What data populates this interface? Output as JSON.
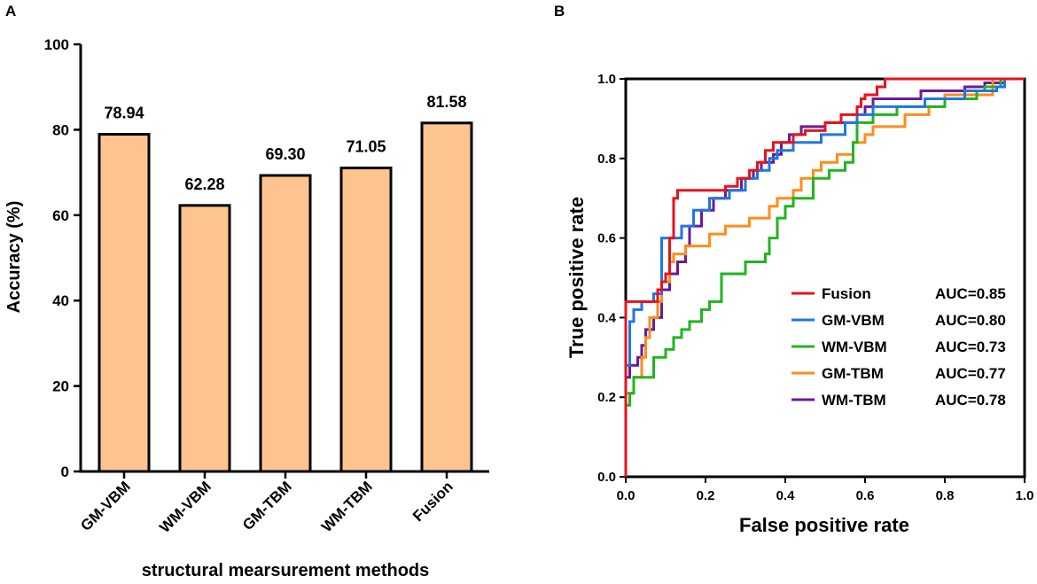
{
  "chart_data": [
    {
      "panel_label": "A",
      "type": "bar",
      "categories": [
        "GM-VBM",
        "WM-VBM",
        "GM-TBM",
        "WM-TBM",
        "Fusion"
      ],
      "values": [
        78.94,
        62.28,
        69.3,
        71.05,
        81.58
      ],
      "value_labels": [
        "78.94",
        "62.28",
        "69.30",
        "71.05",
        "81.58"
      ],
      "title": "",
      "xlabel": "structural mearsurement methods",
      "ylabel": "Accuracy (%)",
      "ylim": [
        0,
        100
      ],
      "yticks": [
        0,
        20,
        40,
        60,
        80,
        100
      ],
      "bar_color": "#FDC48F",
      "bar_edge_color": "#000000"
    },
    {
      "panel_label": "B",
      "type": "line",
      "title": "",
      "xlabel": "False positive rate",
      "ylabel": "True positive rate",
      "xlim": [
        0,
        1
      ],
      "ylim": [
        0,
        1
      ],
      "xticks": [
        "0.0",
        "0.2",
        "0.4",
        "0.6",
        "0.8",
        "1.0"
      ],
      "yticks": [
        "0.0",
        "0.2",
        "0.4",
        "0.6",
        "0.8",
        "1.0"
      ],
      "legend_position": "lower-right",
      "series": [
        {
          "name": "Fusion",
          "auc_label": "AUC=0.85",
          "color": "#E8131B",
          "points": [
            [
              0,
              0
            ],
            [
              0,
              0.44
            ],
            [
              0.08,
              0.44
            ],
            [
              0.08,
              0.47
            ],
            [
              0.09,
              0.47
            ],
            [
              0.09,
              0.49
            ],
            [
              0.1,
              0.49
            ],
            [
              0.1,
              0.51
            ],
            [
              0.11,
              0.51
            ],
            [
              0.11,
              0.6
            ],
            [
              0.12,
              0.6
            ],
            [
              0.12,
              0.7
            ],
            [
              0.13,
              0.7
            ],
            [
              0.13,
              0.72
            ],
            [
              0.25,
              0.72
            ],
            [
              0.25,
              0.73
            ],
            [
              0.28,
              0.73
            ],
            [
              0.28,
              0.75
            ],
            [
              0.31,
              0.75
            ],
            [
              0.31,
              0.77
            ],
            [
              0.33,
              0.77
            ],
            [
              0.33,
              0.79
            ],
            [
              0.35,
              0.79
            ],
            [
              0.35,
              0.82
            ],
            [
              0.37,
              0.82
            ],
            [
              0.37,
              0.84
            ],
            [
              0.42,
              0.84
            ],
            [
              0.42,
              0.86
            ],
            [
              0.45,
              0.86
            ],
            [
              0.45,
              0.87
            ],
            [
              0.5,
              0.87
            ],
            [
              0.5,
              0.89
            ],
            [
              0.54,
              0.89
            ],
            [
              0.54,
              0.91
            ],
            [
              0.58,
              0.91
            ],
            [
              0.58,
              0.93
            ],
            [
              0.59,
              0.93
            ],
            [
              0.59,
              0.95
            ],
            [
              0.6,
              0.95
            ],
            [
              0.6,
              0.96
            ],
            [
              0.63,
              0.96
            ],
            [
              0.63,
              0.98
            ],
            [
              0.65,
              0.98
            ],
            [
              0.65,
              1.0
            ],
            [
              1.0,
              1.0
            ]
          ]
        },
        {
          "name": "GM-VBM",
          "auc_label": "AUC=0.80",
          "color": "#1F77E6",
          "points": [
            [
              0,
              0
            ],
            [
              0,
              0.28
            ],
            [
              0.01,
              0.28
            ],
            [
              0.01,
              0.39
            ],
            [
              0.02,
              0.39
            ],
            [
              0.02,
              0.42
            ],
            [
              0.04,
              0.42
            ],
            [
              0.04,
              0.44
            ],
            [
              0.07,
              0.44
            ],
            [
              0.07,
              0.46
            ],
            [
              0.09,
              0.46
            ],
            [
              0.09,
              0.6
            ],
            [
              0.14,
              0.6
            ],
            [
              0.14,
              0.63
            ],
            [
              0.17,
              0.63
            ],
            [
              0.17,
              0.67
            ],
            [
              0.21,
              0.67
            ],
            [
              0.21,
              0.7
            ],
            [
              0.26,
              0.7
            ],
            [
              0.26,
              0.72
            ],
            [
              0.3,
              0.72
            ],
            [
              0.3,
              0.75
            ],
            [
              0.33,
              0.75
            ],
            [
              0.33,
              0.77
            ],
            [
              0.36,
              0.77
            ],
            [
              0.36,
              0.8
            ],
            [
              0.38,
              0.8
            ],
            [
              0.38,
              0.82
            ],
            [
              0.42,
              0.82
            ],
            [
              0.42,
              0.84
            ],
            [
              0.49,
              0.84
            ],
            [
              0.49,
              0.86
            ],
            [
              0.55,
              0.86
            ],
            [
              0.55,
              0.89
            ],
            [
              0.58,
              0.89
            ],
            [
              0.58,
              0.91
            ],
            [
              0.62,
              0.91
            ],
            [
              0.62,
              0.93
            ],
            [
              0.75,
              0.93
            ],
            [
              0.75,
              0.95
            ],
            [
              0.85,
              0.95
            ],
            [
              0.85,
              0.97
            ],
            [
              0.93,
              0.97
            ],
            [
              0.93,
              0.98
            ],
            [
              0.95,
              0.98
            ],
            [
              0.95,
              1.0
            ],
            [
              1.0,
              1.0
            ]
          ]
        },
        {
          "name": "WM-VBM",
          "auc_label": "AUC=0.73",
          "color": "#21B421",
          "points": [
            [
              0,
              0
            ],
            [
              0,
              0.18
            ],
            [
              0.01,
              0.18
            ],
            [
              0.01,
              0.21
            ],
            [
              0.02,
              0.21
            ],
            [
              0.02,
              0.25
            ],
            [
              0.07,
              0.25
            ],
            [
              0.07,
              0.3
            ],
            [
              0.1,
              0.3
            ],
            [
              0.1,
              0.32
            ],
            [
              0.12,
              0.32
            ],
            [
              0.12,
              0.35
            ],
            [
              0.14,
              0.35
            ],
            [
              0.14,
              0.37
            ],
            [
              0.16,
              0.37
            ],
            [
              0.16,
              0.39
            ],
            [
              0.19,
              0.39
            ],
            [
              0.19,
              0.42
            ],
            [
              0.21,
              0.42
            ],
            [
              0.21,
              0.44
            ],
            [
              0.24,
              0.44
            ],
            [
              0.24,
              0.51
            ],
            [
              0.3,
              0.51
            ],
            [
              0.3,
              0.54
            ],
            [
              0.35,
              0.54
            ],
            [
              0.35,
              0.56
            ],
            [
              0.36,
              0.56
            ],
            [
              0.36,
              0.6
            ],
            [
              0.38,
              0.6
            ],
            [
              0.38,
              0.65
            ],
            [
              0.4,
              0.65
            ],
            [
              0.4,
              0.68
            ],
            [
              0.42,
              0.68
            ],
            [
              0.42,
              0.7
            ],
            [
              0.47,
              0.7
            ],
            [
              0.47,
              0.75
            ],
            [
              0.51,
              0.75
            ],
            [
              0.51,
              0.77
            ],
            [
              0.55,
              0.77
            ],
            [
              0.55,
              0.79
            ],
            [
              0.57,
              0.79
            ],
            [
              0.57,
              0.84
            ],
            [
              0.58,
              0.84
            ],
            [
              0.58,
              0.89
            ],
            [
              0.62,
              0.89
            ],
            [
              0.62,
              0.91
            ],
            [
              0.68,
              0.91
            ],
            [
              0.68,
              0.93
            ],
            [
              0.8,
              0.93
            ],
            [
              0.8,
              0.95
            ],
            [
              0.88,
              0.95
            ],
            [
              0.88,
              0.97
            ],
            [
              0.9,
              0.97
            ],
            [
              0.9,
              0.98
            ],
            [
              0.94,
              0.98
            ],
            [
              0.94,
              1.0
            ],
            [
              1.0,
              1.0
            ]
          ]
        },
        {
          "name": "GM-TBM",
          "auc_label": "AUC=0.77",
          "color": "#FF8C1A",
          "points": [
            [
              0,
              0
            ],
            [
              0,
              0.21
            ],
            [
              0.02,
              0.21
            ],
            [
              0.02,
              0.25
            ],
            [
              0.04,
              0.25
            ],
            [
              0.04,
              0.3
            ],
            [
              0.05,
              0.3
            ],
            [
              0.05,
              0.35
            ],
            [
              0.06,
              0.35
            ],
            [
              0.06,
              0.4
            ],
            [
              0.08,
              0.4
            ],
            [
              0.08,
              0.44
            ],
            [
              0.09,
              0.44
            ],
            [
              0.09,
              0.49
            ],
            [
              0.11,
              0.49
            ],
            [
              0.11,
              0.54
            ],
            [
              0.12,
              0.54
            ],
            [
              0.12,
              0.56
            ],
            [
              0.15,
              0.56
            ],
            [
              0.15,
              0.58
            ],
            [
              0.21,
              0.58
            ],
            [
              0.21,
              0.61
            ],
            [
              0.25,
              0.61
            ],
            [
              0.25,
              0.63
            ],
            [
              0.31,
              0.63
            ],
            [
              0.31,
              0.65
            ],
            [
              0.36,
              0.65
            ],
            [
              0.36,
              0.68
            ],
            [
              0.38,
              0.68
            ],
            [
              0.38,
              0.7
            ],
            [
              0.42,
              0.7
            ],
            [
              0.42,
              0.72
            ],
            [
              0.44,
              0.72
            ],
            [
              0.44,
              0.75
            ],
            [
              0.47,
              0.75
            ],
            [
              0.47,
              0.77
            ],
            [
              0.49,
              0.77
            ],
            [
              0.49,
              0.79
            ],
            [
              0.53,
              0.79
            ],
            [
              0.53,
              0.81
            ],
            [
              0.57,
              0.81
            ],
            [
              0.57,
              0.84
            ],
            [
              0.6,
              0.84
            ],
            [
              0.6,
              0.86
            ],
            [
              0.62,
              0.86
            ],
            [
              0.62,
              0.88
            ],
            [
              0.7,
              0.88
            ],
            [
              0.7,
              0.91
            ],
            [
              0.76,
              0.91
            ],
            [
              0.76,
              0.93
            ],
            [
              0.8,
              0.93
            ],
            [
              0.8,
              0.96
            ],
            [
              0.92,
              0.96
            ],
            [
              0.92,
              1.0
            ],
            [
              1.0,
              1.0
            ]
          ]
        },
        {
          "name": "WM-TBM",
          "auc_label": "AUC=0.78",
          "color": "#6A1B9A",
          "points": [
            [
              0,
              0
            ],
            [
              0,
              0.25
            ],
            [
              0.01,
              0.25
            ],
            [
              0.01,
              0.28
            ],
            [
              0.03,
              0.28
            ],
            [
              0.03,
              0.3
            ],
            [
              0.04,
              0.3
            ],
            [
              0.04,
              0.33
            ],
            [
              0.05,
              0.33
            ],
            [
              0.05,
              0.37
            ],
            [
              0.07,
              0.37
            ],
            [
              0.07,
              0.4
            ],
            [
              0.09,
              0.4
            ],
            [
              0.09,
              0.47
            ],
            [
              0.11,
              0.47
            ],
            [
              0.11,
              0.51
            ],
            [
              0.13,
              0.51
            ],
            [
              0.13,
              0.54
            ],
            [
              0.15,
              0.54
            ],
            [
              0.15,
              0.58
            ],
            [
              0.16,
              0.58
            ],
            [
              0.16,
              0.63
            ],
            [
              0.19,
              0.63
            ],
            [
              0.19,
              0.67
            ],
            [
              0.22,
              0.67
            ],
            [
              0.22,
              0.7
            ],
            [
              0.25,
              0.7
            ],
            [
              0.25,
              0.72
            ],
            [
              0.29,
              0.72
            ],
            [
              0.29,
              0.75
            ],
            [
              0.32,
              0.75
            ],
            [
              0.32,
              0.77
            ],
            [
              0.34,
              0.77
            ],
            [
              0.34,
              0.79
            ],
            [
              0.37,
              0.79
            ],
            [
              0.37,
              0.81
            ],
            [
              0.39,
              0.81
            ],
            [
              0.39,
              0.84
            ],
            [
              0.41,
              0.84
            ],
            [
              0.41,
              0.86
            ],
            [
              0.44,
              0.86
            ],
            [
              0.44,
              0.88
            ],
            [
              0.5,
              0.88
            ],
            [
              0.5,
              0.89
            ],
            [
              0.58,
              0.89
            ],
            [
              0.58,
              0.91
            ],
            [
              0.6,
              0.91
            ],
            [
              0.6,
              0.93
            ],
            [
              0.62,
              0.93
            ],
            [
              0.62,
              0.95
            ],
            [
              0.74,
              0.95
            ],
            [
              0.74,
              0.97
            ],
            [
              0.85,
              0.97
            ],
            [
              0.85,
              0.98
            ],
            [
              0.9,
              0.98
            ],
            [
              0.9,
              0.99
            ],
            [
              0.95,
              0.99
            ],
            [
              0.95,
              1.0
            ],
            [
              1.0,
              1.0
            ]
          ]
        }
      ]
    }
  ]
}
